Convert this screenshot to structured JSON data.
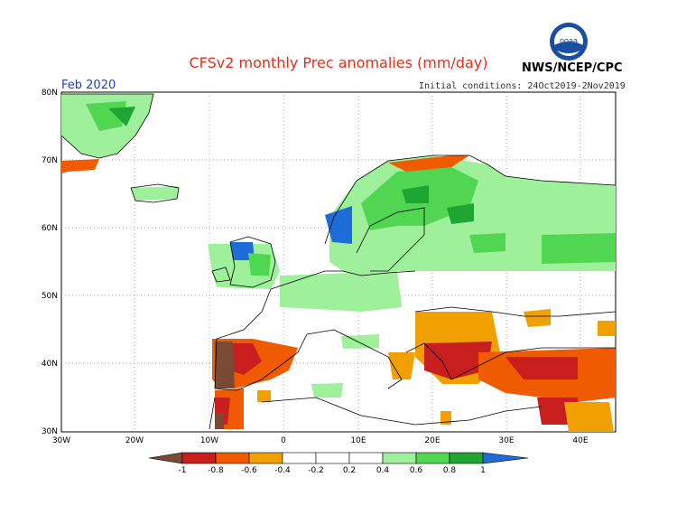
{
  "header": {
    "title": "CFSv2 monthly Prec anomalies (mm/day)",
    "agency": "NWS/NCEP/CPC",
    "logo_text": "noaa",
    "period": "Feb 2020",
    "initial_conditions": "Initial conditions: 24Oct2019-2Nov2019"
  },
  "map": {
    "lat_ticks": [
      "80N",
      "70N",
      "60N",
      "50N",
      "40N",
      "30N"
    ],
    "lon_ticks": [
      "30W",
      "20W",
      "10W",
      "0",
      "10E",
      "20E",
      "30E",
      "40E"
    ]
  },
  "colorbar": {
    "labels": [
      "-1",
      "-0.8",
      "-0.6",
      "-0.4",
      "-0.2",
      "0.2",
      "0.4",
      "0.6",
      "0.8",
      "1"
    ],
    "colors": [
      "#7a4a35",
      "#c81e1e",
      "#f05a00",
      "#f0a000",
      "#ffffff",
      "#ffffff",
      "#9ef09a",
      "#50d650",
      "#1fa531",
      "#1e6cd8"
    ]
  },
  "colors": {
    "dark_green": "#1fa531",
    "green": "#50d650",
    "light_green": "#9ef09a",
    "blue": "#1e6cd8",
    "brown": "#7a4a35",
    "red": "#c81e1e",
    "orange_red": "#f05a00",
    "orange": "#f0a000"
  }
}
